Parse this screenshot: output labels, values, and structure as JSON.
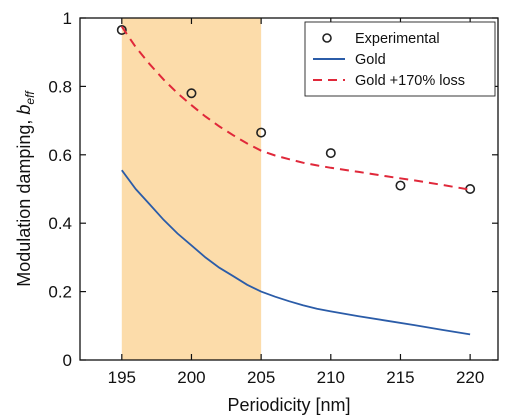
{
  "chart_data": {
    "type": "line",
    "xlabel": "Periodicity [nm]",
    "ylabel_main": "Modulation damping, ",
    "ylabel_symbol": "b",
    "ylabel_sub": "eff",
    "xlim": [
      192,
      222
    ],
    "ylim": [
      0,
      1
    ],
    "x_ticks": [
      195,
      200,
      205,
      210,
      215,
      220
    ],
    "y_ticks": [
      0,
      0.2,
      0.4,
      0.6,
      0.8,
      1
    ],
    "x_tick_labels": [
      "195",
      "200",
      "205",
      "210",
      "215",
      "220"
    ],
    "y_tick_labels": [
      "0",
      "0.2",
      "0.4",
      "0.6",
      "0.8",
      "1"
    ],
    "shaded_region": {
      "x_start": 195,
      "x_end": 205,
      "color": "#fcdcaa"
    },
    "legend_position": "top-right",
    "series": [
      {
        "name": "Experimental",
        "style": "markers",
        "color": "#222222",
        "x": [
          195,
          200,
          205,
          210,
          215,
          220
        ],
        "y": [
          0.965,
          0.78,
          0.665,
          0.605,
          0.51,
          0.5
        ]
      },
      {
        "name": "Gold",
        "style": "solid",
        "color": "#2b5ca8",
        "x": [
          195,
          196,
          197,
          198,
          199,
          200,
          201,
          202,
          203,
          204,
          205,
          206,
          207,
          208,
          209,
          210,
          212,
          214,
          216,
          218,
          220
        ],
        "y": [
          0.555,
          0.5,
          0.455,
          0.41,
          0.37,
          0.335,
          0.3,
          0.27,
          0.245,
          0.22,
          0.2,
          0.185,
          0.172,
          0.16,
          0.15,
          0.142,
          0.128,
          0.115,
          0.102,
          0.088,
          0.075
        ]
      },
      {
        "name": "Gold +170% loss",
        "style": "dashed",
        "color": "#e0283a",
        "x": [
          195,
          196,
          197,
          198,
          199,
          200,
          201,
          202,
          203,
          204,
          205,
          206,
          207,
          208,
          209,
          210,
          212,
          214,
          216,
          218,
          220
        ],
        "y": [
          0.975,
          0.915,
          0.865,
          0.82,
          0.78,
          0.745,
          0.712,
          0.683,
          0.657,
          0.633,
          0.612,
          0.598,
          0.587,
          0.577,
          0.569,
          0.562,
          0.55,
          0.537,
          0.525,
          0.512,
          0.498
        ]
      }
    ]
  }
}
